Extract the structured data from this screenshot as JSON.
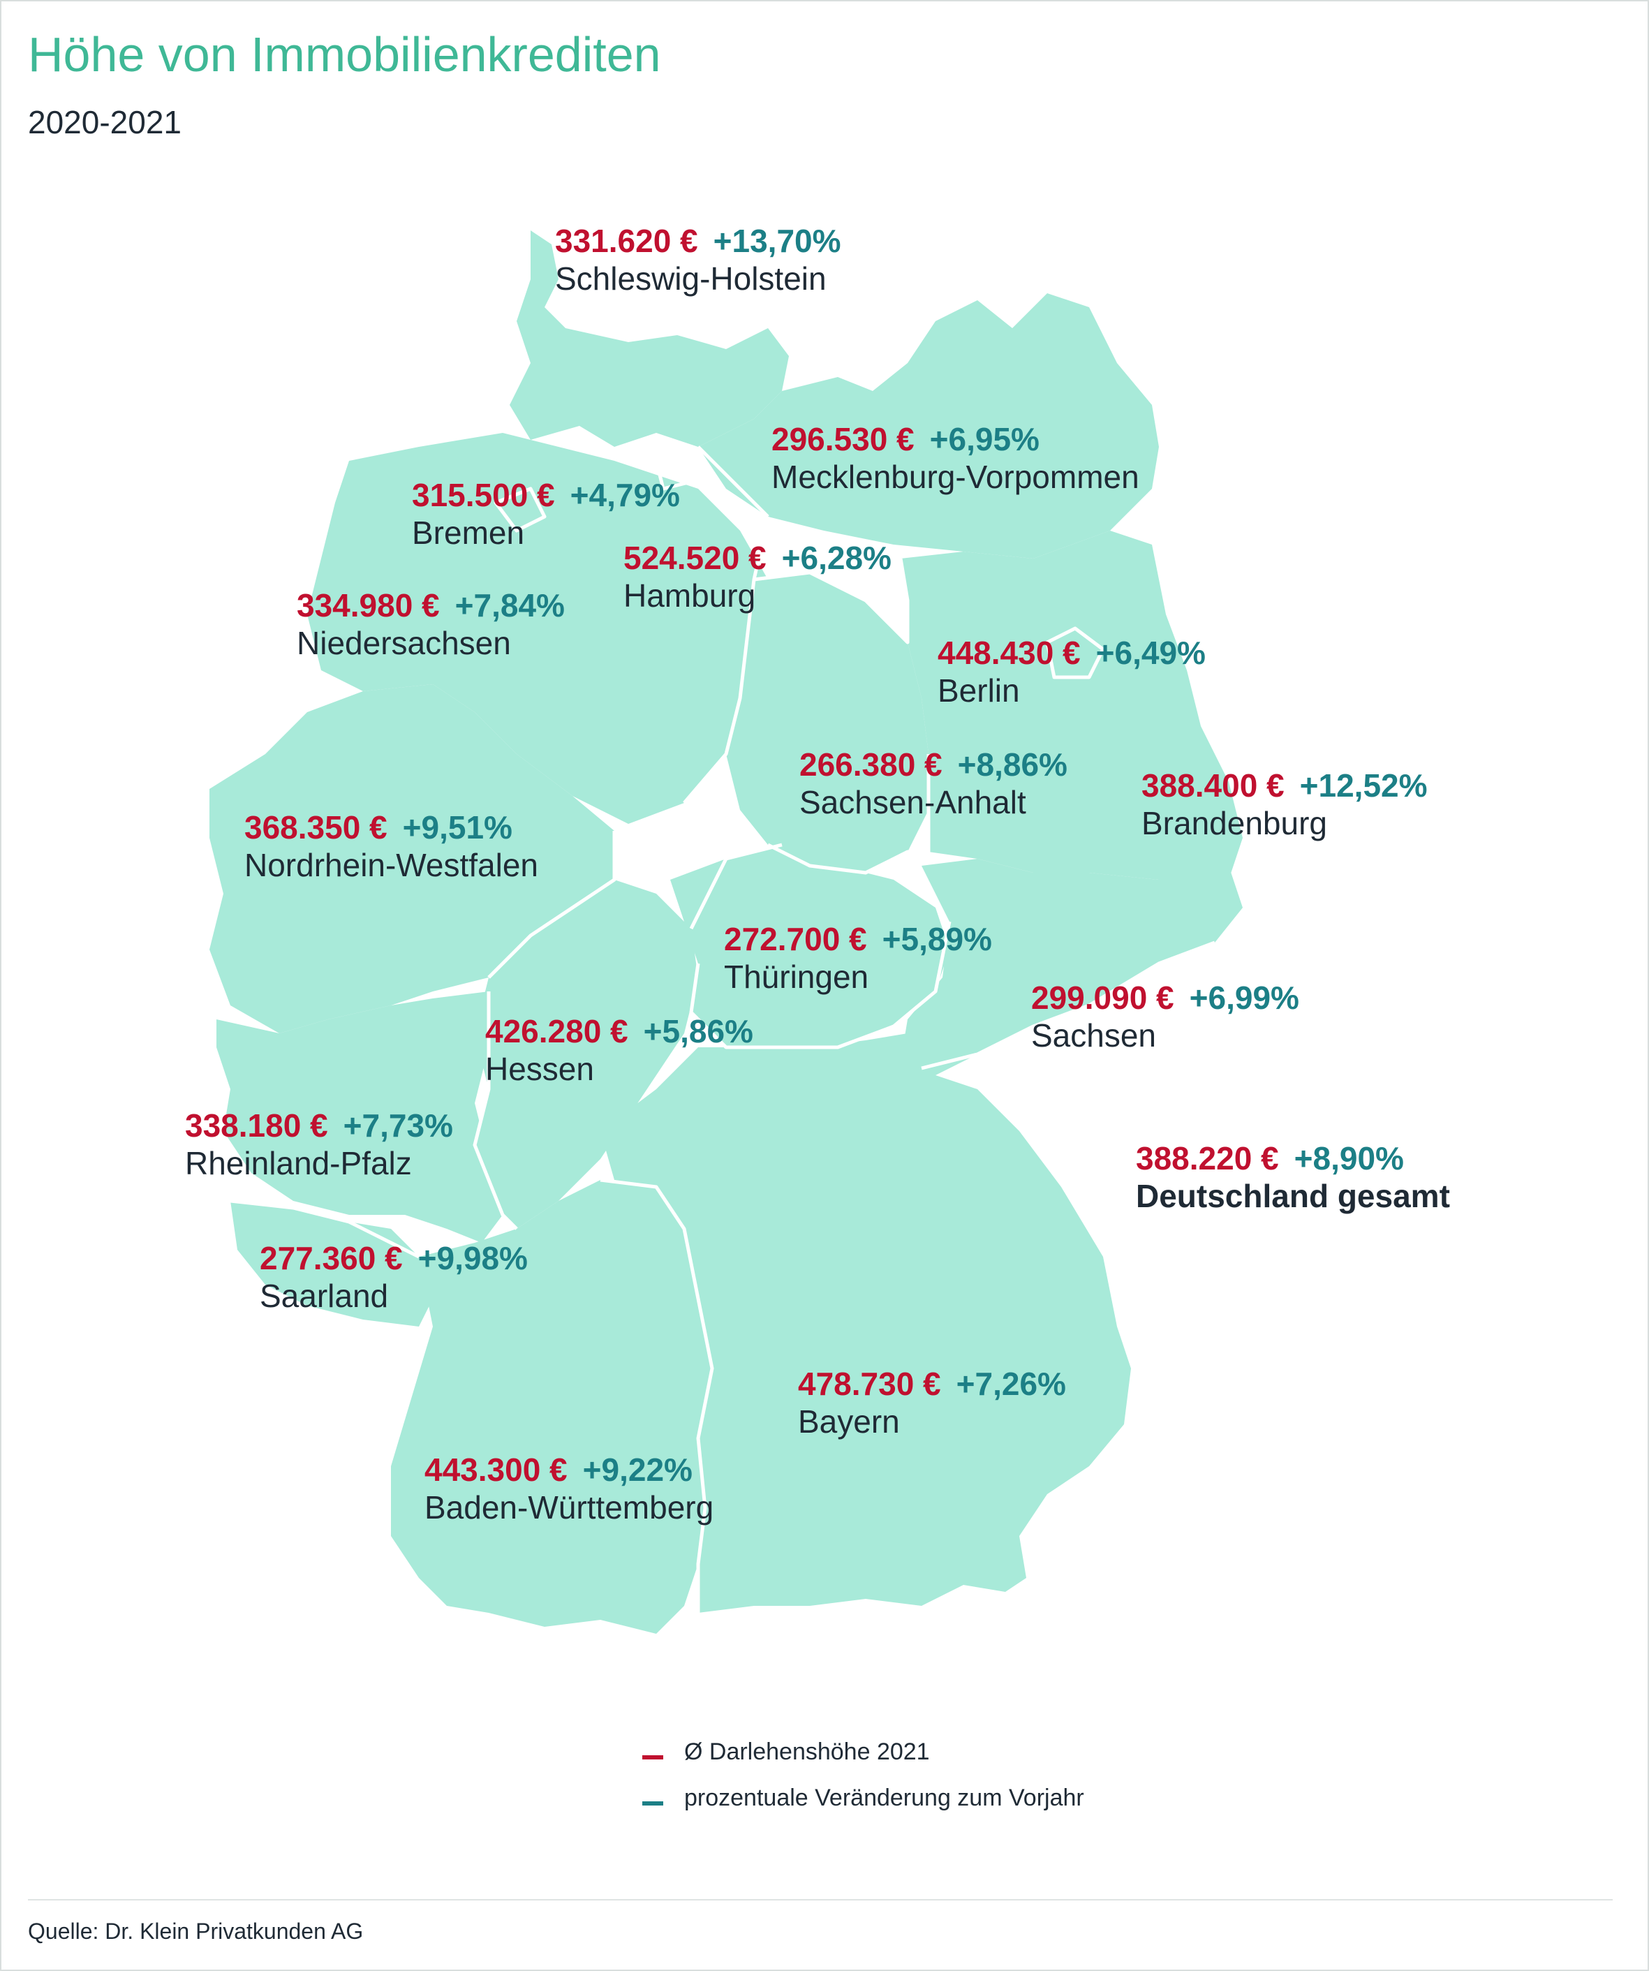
{
  "title": "Höhe von Immobilienkrediten",
  "subtitle": "2020-2021",
  "colors": {
    "land": "#a8ead9",
    "border": "#ffffff",
    "amount": "#c0102f",
    "change": "#1c7f86",
    "title": "#3fb896"
  },
  "regions": [
    {
      "id": "schleswig-holstein",
      "amount": "331.620 €",
      "change": "+13,70%",
      "name": "Schleswig-Holstein"
    },
    {
      "id": "mecklenburg-vorpommern",
      "amount": "296.530 €",
      "change": "+6,95%",
      "name": "Mecklenburg-Vorpommen"
    },
    {
      "id": "bremen",
      "amount": "315.500 €",
      "change": "+4,79%",
      "name": "Bremen"
    },
    {
      "id": "hamburg",
      "amount": "524.520 €",
      "change": "+6,28%",
      "name": "Hamburg"
    },
    {
      "id": "niedersachsen",
      "amount": "334.980 €",
      "change": "+7,84%",
      "name": "Niedersachsen"
    },
    {
      "id": "berlin",
      "amount": "448.430 €",
      "change": "+6,49%",
      "name": "Berlin"
    },
    {
      "id": "sachsen-anhalt",
      "amount": "266.380 €",
      "change": "+8,86%",
      "name": "Sachsen-Anhalt"
    },
    {
      "id": "brandenburg",
      "amount": "388.400 €",
      "change": "+12,52%",
      "name": "Brandenburg"
    },
    {
      "id": "nordrhein-westfalen",
      "amount": "368.350 €",
      "change": "+9,51%",
      "name": "Nordrhein-Westfalen"
    },
    {
      "id": "thueringen",
      "amount": "272.700 €",
      "change": "+5,89%",
      "name": "Thüringen"
    },
    {
      "id": "sachsen",
      "amount": "299.090 €",
      "change": "+6,99%",
      "name": "Sachsen"
    },
    {
      "id": "hessen",
      "amount": "426.280 €",
      "change": "+5,86%",
      "name": "Hessen"
    },
    {
      "id": "rheinland-pfalz",
      "amount": "338.180 €",
      "change": "+7,73%",
      "name": "Rheinland-Pfalz"
    },
    {
      "id": "saarland",
      "amount": "277.360 €",
      "change": "+9,98%",
      "name": "Saarland"
    },
    {
      "id": "bayern",
      "amount": "478.730 €",
      "change": "+7,26%",
      "name": "Bayern"
    },
    {
      "id": "baden-wuerttemberg",
      "amount": "443.300 €",
      "change": "+9,22%",
      "name": "Baden-Württemberg"
    },
    {
      "id": "deutschland",
      "amount": "388.220 €",
      "change": "+8,90%",
      "name": "Deutschland gesamt"
    }
  ],
  "legend": {
    "amount_label": "Ø Darlehenshöhe 2021",
    "change_label": "prozentuale Veränderung zum Vorjahr"
  },
  "source": "Quelle: Dr. Klein Privatkunden AG"
}
